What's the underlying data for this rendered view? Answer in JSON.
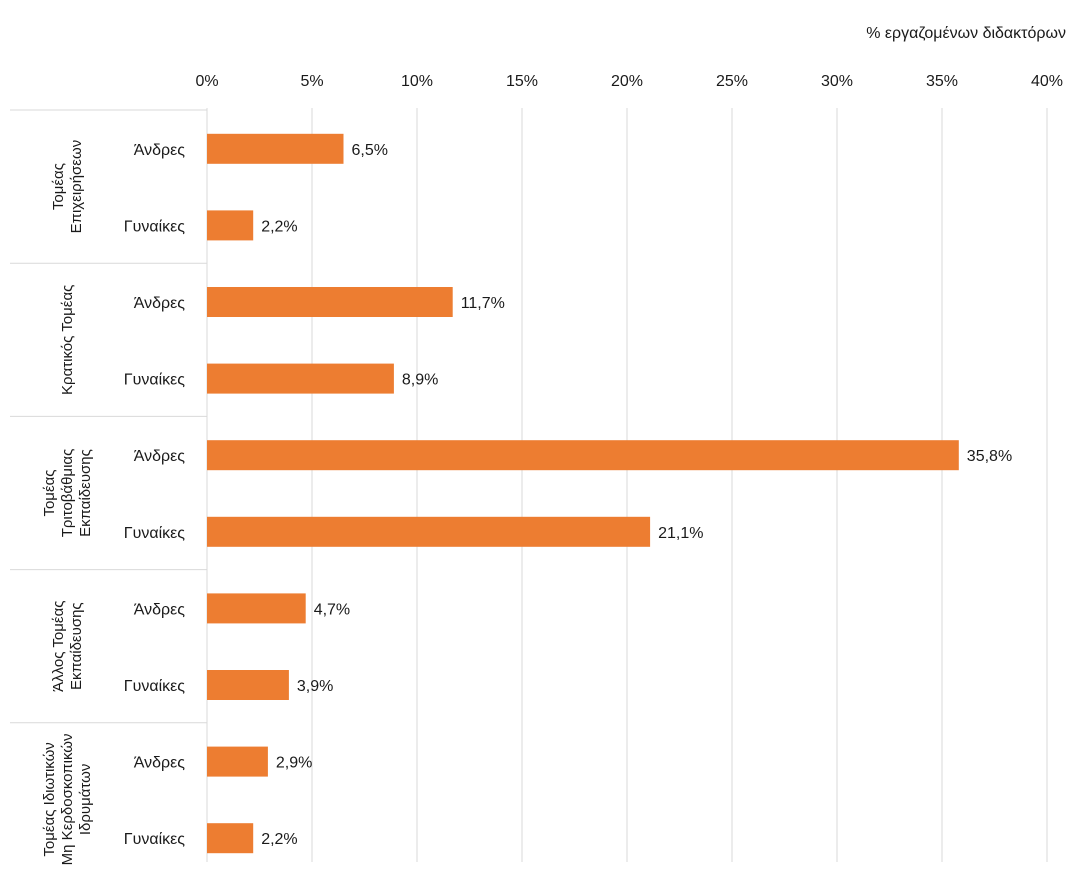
{
  "chart_data": {
    "type": "bar",
    "orientation": "horizontal",
    "xlabel": "% εργαζομένων διδακτόρων",
    "xlim": [
      0,
      40
    ],
    "xticks": [
      "0%",
      "5%",
      "10%",
      "15%",
      "20%",
      "25%",
      "30%",
      "35%",
      "40%"
    ],
    "x_axis_position": "top",
    "grid": true,
    "legend": "none",
    "bar_color": "#ED7D31",
    "groups": [
      {
        "name": [
          "Τομέας",
          "Επιχειρήσεων"
        ],
        "bars": [
          {
            "label": "Άνδρες",
            "value": 6.5,
            "text": "6,5%"
          },
          {
            "label": "Γυναίκες",
            "value": 2.2,
            "text": "2,2%"
          }
        ]
      },
      {
        "name": [
          "Κρατικός Τομέας"
        ],
        "bars": [
          {
            "label": "Άνδρες",
            "value": 11.7,
            "text": "11,7%"
          },
          {
            "label": "Γυναίκες",
            "value": 8.9,
            "text": "8,9%"
          }
        ]
      },
      {
        "name": [
          "Τομέας",
          "Τριτοβάθμιας",
          "Εκπαίδευσης"
        ],
        "bars": [
          {
            "label": "Άνδρες",
            "value": 35.8,
            "text": "35,8%"
          },
          {
            "label": "Γυναίκες",
            "value": 21.1,
            "text": "21,1%"
          }
        ]
      },
      {
        "name": [
          "Άλλος Τομέας",
          "Εκπαίδευσης"
        ],
        "bars": [
          {
            "label": "Άνδρες",
            "value": 4.7,
            "text": "4,7%"
          },
          {
            "label": "Γυναίκες",
            "value": 3.9,
            "text": "3,9%"
          }
        ]
      },
      {
        "name": [
          "Τομέας Ιδιωτικών",
          "Μη Κερδοσκοπικών",
          "Ιδρυμάτων"
        ],
        "bars": [
          {
            "label": "Άνδρες",
            "value": 2.9,
            "text": "2,9%"
          },
          {
            "label": "Γυναίκες",
            "value": 2.2,
            "text": "2,2%"
          }
        ]
      }
    ]
  }
}
